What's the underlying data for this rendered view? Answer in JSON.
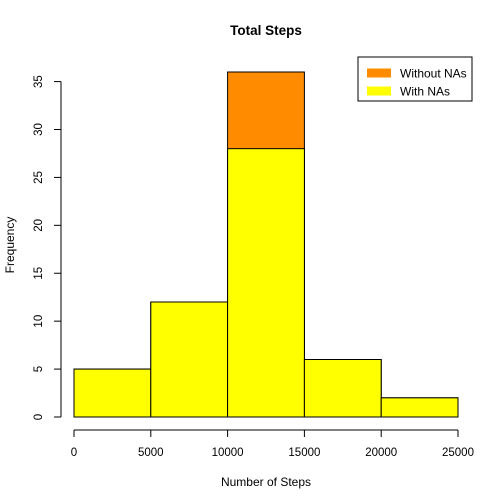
{
  "chart_data": {
    "type": "bar",
    "subtype": "overlaid-histogram",
    "title": "Total Steps",
    "xlabel": "Number of Steps",
    "ylabel": "Frequency",
    "bins": [
      [
        0,
        5000
      ],
      [
        5000,
        10000
      ],
      [
        10000,
        15000
      ],
      [
        15000,
        20000
      ],
      [
        20000,
        25000
      ]
    ],
    "series": [
      {
        "name": "Without NAs",
        "values": [
          5,
          12,
          36,
          6,
          2
        ],
        "color": "#FF8C00"
      },
      {
        "name": "With NAs",
        "values": [
          5,
          12,
          28,
          6,
          2
        ],
        "color": "#FFFF00"
      }
    ],
    "xlim": [
      0,
      25000
    ],
    "ylim": [
      0,
      36
    ],
    "xticks": [
      0,
      5000,
      10000,
      15000,
      20000,
      25000
    ],
    "yticks": [
      0,
      5,
      10,
      15,
      20,
      25,
      30,
      35
    ],
    "legend_position": "top-right",
    "grid": false,
    "bar_outline_color": "#000000"
  }
}
